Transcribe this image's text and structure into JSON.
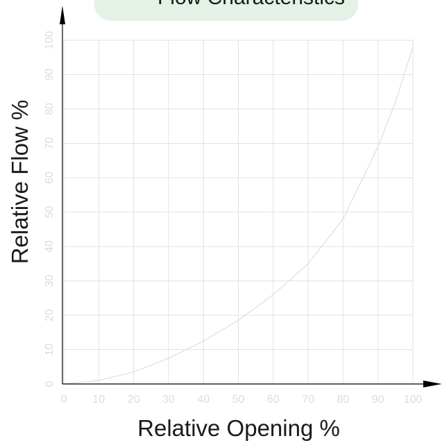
{
  "chart_data": {
    "type": "line",
    "title": "Flow Characteristics",
    "xlabel": "Relative Opening %",
    "ylabel": "Relative Flow %",
    "xlim": [
      0,
      100
    ],
    "ylim": [
      0,
      100
    ],
    "x_ticks": [
      0,
      10,
      20,
      30,
      40,
      50,
      60,
      70,
      80,
      90,
      100
    ],
    "y_ticks": [
      0,
      10,
      20,
      30,
      40,
      50,
      60,
      70,
      80,
      90,
      100
    ],
    "grid": true,
    "legend": "none",
    "series": [
      {
        "x": [
          0,
          10,
          20,
          30,
          40,
          50,
          60,
          70,
          80,
          90,
          95,
          100
        ],
        "y": [
          0,
          1,
          3.5,
          7.5,
          12.5,
          18.5,
          26,
          35,
          48,
          69,
          82,
          98
        ]
      }
    ]
  },
  "colors": {
    "title_box": "#e3f1e6",
    "grid": "#e2e2e2",
    "curve": "#dedede",
    "axis_arrow": "#000000",
    "tick_label": "#dcdcdc",
    "text": "#1a1a1a"
  }
}
